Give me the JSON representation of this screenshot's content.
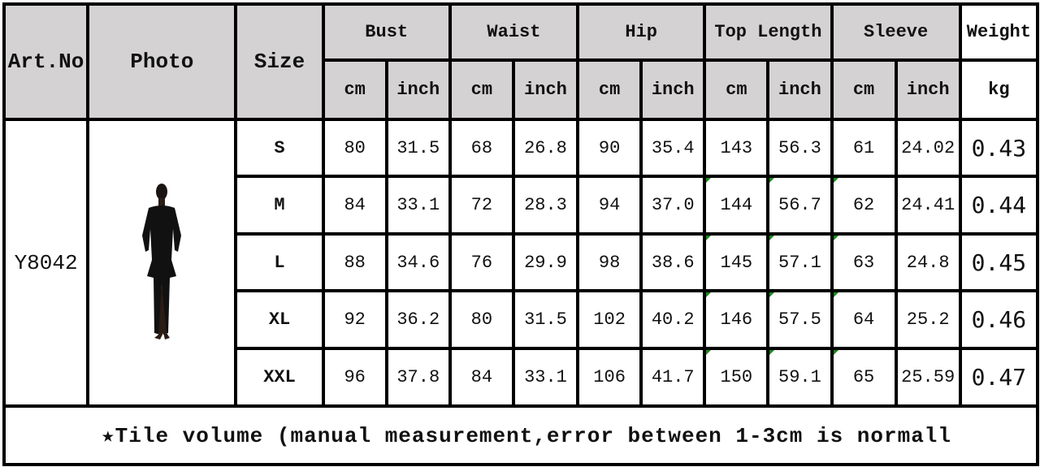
{
  "headers": {
    "art_no": "Art.No",
    "photo": "Photo",
    "size": "Size",
    "groups": [
      "Bust",
      "Waist",
      "Hip",
      "Top Length",
      "Sleeve"
    ],
    "weight": "Weight",
    "unit_cm": "cm",
    "unit_inch": "inch",
    "unit_kg": "kg"
  },
  "article": "Y8042",
  "photo_icon": "black-jumpsuit-model-photo",
  "rows": [
    {
      "size": "S",
      "values": [
        "80",
        "31.5",
        "68",
        "26.8",
        "90",
        "35.4",
        "143",
        "56.3",
        "61",
        "24.02"
      ],
      "weight": "0.43"
    },
    {
      "size": "M",
      "values": [
        "84",
        "33.1",
        "72",
        "28.3",
        "94",
        "37.0",
        "144",
        "56.7",
        "62",
        "24.41"
      ],
      "weight": "0.44"
    },
    {
      "size": "L",
      "values": [
        "88",
        "34.6",
        "76",
        "29.9",
        "98",
        "38.6",
        "145",
        "57.1",
        "63",
        "24.8"
      ],
      "weight": "0.45"
    },
    {
      "size": "XL",
      "values": [
        "92",
        "36.2",
        "80",
        "31.5",
        "102",
        "40.2",
        "146",
        "57.5",
        "64",
        "25.2"
      ],
      "weight": "0.46"
    },
    {
      "size": "XXL",
      "values": [
        "96",
        "37.8",
        "84",
        "33.1",
        "106",
        "41.7",
        "150",
        "59.1",
        "65",
        "25.59"
      ],
      "weight": "0.47"
    }
  ],
  "note": "★Tile volume (manual measurement,error between 1-3cm is normall",
  "header_bg": "#d4d2d3",
  "marker_color": "#1a8a1a"
}
